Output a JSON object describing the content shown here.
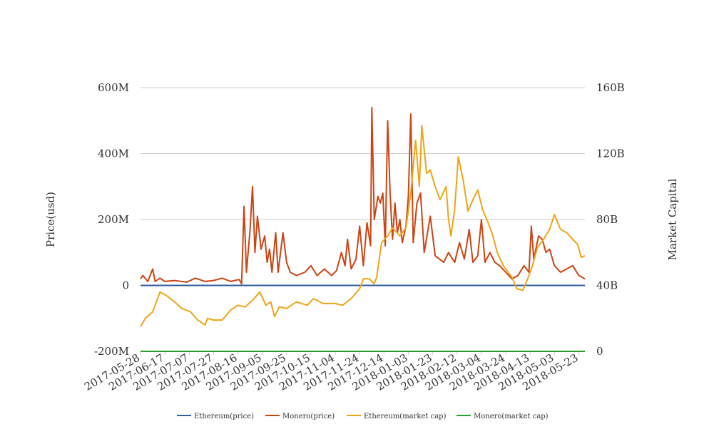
{
  "chart_data": {
    "type": "line",
    "x_range": [
      "2017-05-28",
      "2018-05-28"
    ],
    "x_tick_labels": [
      "2017-05-28",
      "2017-06-17",
      "2017-07-07",
      "2017-07-27",
      "2017-08-16",
      "2017-09-05",
      "2017-09-25",
      "2017-10-15",
      "2017-11-04",
      "2017-11-24",
      "2017-12-14",
      "2018-01-03",
      "2018-01-23",
      "2018-02-12",
      "2018-03-04",
      "2018-03-24",
      "2018-04-13",
      "2018-05-03",
      "2018-05-23"
    ],
    "y_left": {
      "label": "Price(usd)",
      "range": [
        -200000000,
        600000000
      ],
      "tick_labels": [
        "-200M",
        "0",
        "200M",
        "400M",
        "600M"
      ]
    },
    "y_right": {
      "label": "Market Capital",
      "range": [
        0,
        160000000000
      ],
      "tick_labels": [
        "0",
        "40B",
        "80B",
        "120B",
        "160B"
      ]
    },
    "grid": true,
    "legend_position": "bottom-center",
    "series": [
      {
        "name": "Ethereum(price)",
        "axis": "left",
        "color": "#2f5d9e",
        "points": [
          [
            "2017-05-28",
            0
          ],
          [
            "2018-05-28",
            0
          ]
        ]
      },
      {
        "name": "Monero(price)",
        "axis": "left",
        "color": "#cc4414",
        "points": [
          [
            "2017-05-28",
            20000000
          ],
          [
            "2017-05-30",
            30000000
          ],
          [
            "2017-06-03",
            12000000
          ],
          [
            "2017-06-07",
            50000000
          ],
          [
            "2017-06-09",
            12000000
          ],
          [
            "2017-06-13",
            22000000
          ],
          [
            "2017-06-17",
            12000000
          ],
          [
            "2017-06-25",
            15000000
          ],
          [
            "2017-07-05",
            10000000
          ],
          [
            "2017-07-12",
            22000000
          ],
          [
            "2017-07-20",
            12000000
          ],
          [
            "2017-07-27",
            15000000
          ],
          [
            "2017-08-03",
            22000000
          ],
          [
            "2017-08-10",
            12000000
          ],
          [
            "2017-08-17",
            18000000
          ],
          [
            "2017-08-19",
            5000000
          ],
          [
            "2017-08-21",
            240000000
          ],
          [
            "2017-08-23",
            40000000
          ],
          [
            "2017-08-26",
            170000000
          ],
          [
            "2017-08-28",
            300000000
          ],
          [
            "2017-08-30",
            100000000
          ],
          [
            "2017-09-01",
            210000000
          ],
          [
            "2017-09-04",
            110000000
          ],
          [
            "2017-09-07",
            150000000
          ],
          [
            "2017-09-09",
            70000000
          ],
          [
            "2017-09-11",
            110000000
          ],
          [
            "2017-09-13",
            40000000
          ],
          [
            "2017-09-16",
            160000000
          ],
          [
            "2017-09-18",
            40000000
          ],
          [
            "2017-09-22",
            160000000
          ],
          [
            "2017-09-25",
            70000000
          ],
          [
            "2017-09-28",
            40000000
          ],
          [
            "2017-10-03",
            30000000
          ],
          [
            "2017-10-10",
            40000000
          ],
          [
            "2017-10-15",
            60000000
          ],
          [
            "2017-10-20",
            30000000
          ],
          [
            "2017-10-26",
            50000000
          ],
          [
            "2017-11-01",
            30000000
          ],
          [
            "2017-11-05",
            45000000
          ],
          [
            "2017-11-09",
            100000000
          ],
          [
            "2017-11-12",
            60000000
          ],
          [
            "2017-11-14",
            140000000
          ],
          [
            "2017-11-17",
            50000000
          ],
          [
            "2017-11-21",
            80000000
          ],
          [
            "2017-11-24",
            180000000
          ],
          [
            "2017-11-27",
            60000000
          ],
          [
            "2017-11-30",
            190000000
          ],
          [
            "2017-12-03",
            120000000
          ],
          [
            "2017-12-04",
            540000000
          ],
          [
            "2017-12-06",
            200000000
          ],
          [
            "2017-12-09",
            270000000
          ],
          [
            "2017-12-11",
            250000000
          ],
          [
            "2017-12-13",
            280000000
          ],
          [
            "2017-12-15",
            120000000
          ],
          [
            "2017-12-17",
            500000000
          ],
          [
            "2017-12-19",
            280000000
          ],
          [
            "2017-12-21",
            140000000
          ],
          [
            "2017-12-23",
            250000000
          ],
          [
            "2017-12-25",
            160000000
          ],
          [
            "2017-12-27",
            200000000
          ],
          [
            "2017-12-29",
            130000000
          ],
          [
            "2018-01-01",
            180000000
          ],
          [
            "2018-01-03",
            270000000
          ],
          [
            "2018-01-05",
            520000000
          ],
          [
            "2018-01-07",
            130000000
          ],
          [
            "2018-01-10",
            250000000
          ],
          [
            "2018-01-13",
            280000000
          ],
          [
            "2018-01-16",
            100000000
          ],
          [
            "2018-01-21",
            210000000
          ],
          [
            "2018-01-25",
            90000000
          ],
          [
            "2018-02-01",
            70000000
          ],
          [
            "2018-02-05",
            100000000
          ],
          [
            "2018-02-10",
            70000000
          ],
          [
            "2018-02-14",
            130000000
          ],
          [
            "2018-02-18",
            80000000
          ],
          [
            "2018-02-22",
            170000000
          ],
          [
            "2018-02-25",
            70000000
          ],
          [
            "2018-03-01",
            90000000
          ],
          [
            "2018-03-04",
            200000000
          ],
          [
            "2018-03-07",
            70000000
          ],
          [
            "2018-03-11",
            100000000
          ],
          [
            "2018-03-15",
            70000000
          ],
          [
            "2018-03-19",
            60000000
          ],
          [
            "2018-03-24",
            40000000
          ],
          [
            "2018-03-29",
            20000000
          ],
          [
            "2018-04-03",
            30000000
          ],
          [
            "2018-04-08",
            60000000
          ],
          [
            "2018-04-12",
            40000000
          ],
          [
            "2018-04-14",
            180000000
          ],
          [
            "2018-04-16",
            80000000
          ],
          [
            "2018-04-20",
            150000000
          ],
          [
            "2018-04-23",
            140000000
          ],
          [
            "2018-04-26",
            100000000
          ],
          [
            "2018-04-29",
            110000000
          ],
          [
            "2018-05-03",
            60000000
          ],
          [
            "2018-05-08",
            40000000
          ],
          [
            "2018-05-13",
            50000000
          ],
          [
            "2018-05-18",
            60000000
          ],
          [
            "2018-05-23",
            30000000
          ],
          [
            "2018-05-28",
            20000000
          ]
        ]
      },
      {
        "name": "Ethereum(market cap)",
        "axis": "right",
        "color": "#efa417",
        "points": [
          [
            "2017-05-28",
            15000000000
          ],
          [
            "2017-06-01",
            20000000000
          ],
          [
            "2017-06-07",
            24000000000
          ],
          [
            "2017-06-13",
            36000000000
          ],
          [
            "2017-06-18",
            34000000000
          ],
          [
            "2017-06-25",
            30000000000
          ],
          [
            "2017-07-01",
            26000000000
          ],
          [
            "2017-07-08",
            24000000000
          ],
          [
            "2017-07-14",
            19000000000
          ],
          [
            "2017-07-20",
            16000000000
          ],
          [
            "2017-07-22",
            20000000000
          ],
          [
            "2017-07-27",
            19000000000
          ],
          [
            "2017-08-03",
            19000000000
          ],
          [
            "2017-08-10",
            25000000000
          ],
          [
            "2017-08-16",
            28000000000
          ],
          [
            "2017-08-22",
            27000000000
          ],
          [
            "2017-08-28",
            31000000000
          ],
          [
            "2017-09-03",
            36000000000
          ],
          [
            "2017-09-08",
            28000000000
          ],
          [
            "2017-09-12",
            30000000000
          ],
          [
            "2017-09-15",
            21000000000
          ],
          [
            "2017-09-19",
            27000000000
          ],
          [
            "2017-09-25",
            26000000000
          ],
          [
            "2017-10-03",
            30000000000
          ],
          [
            "2017-10-12",
            28000000000
          ],
          [
            "2017-10-17",
            32000000000
          ],
          [
            "2017-10-25",
            29000000000
          ],
          [
            "2017-11-04",
            29000000000
          ],
          [
            "2017-11-10",
            28000000000
          ],
          [
            "2017-11-17",
            32000000000
          ],
          [
            "2017-11-24",
            38000000000
          ],
          [
            "2017-11-27",
            44000000000
          ],
          [
            "2017-12-02",
            44000000000
          ],
          [
            "2017-12-06",
            41000000000
          ],
          [
            "2017-12-08",
            45000000000
          ],
          [
            "2017-12-12",
            66000000000
          ],
          [
            "2017-12-17",
            70000000000
          ],
          [
            "2017-12-21",
            75000000000
          ],
          [
            "2017-12-27",
            70000000000
          ],
          [
            "2018-01-01",
            75000000000
          ],
          [
            "2018-01-05",
            96000000000
          ],
          [
            "2018-01-09",
            128000000000
          ],
          [
            "2018-01-12",
            100000000000
          ],
          [
            "2018-01-14",
            137000000000
          ],
          [
            "2018-01-18",
            108000000000
          ],
          [
            "2018-01-21",
            110000000000
          ],
          [
            "2018-01-25",
            100000000000
          ],
          [
            "2018-01-29",
            92000000000
          ],
          [
            "2018-02-03",
            100000000000
          ],
          [
            "2018-02-05",
            80000000000
          ],
          [
            "2018-02-07",
            70000000000
          ],
          [
            "2018-02-10",
            86000000000
          ],
          [
            "2018-02-13",
            118000000000
          ],
          [
            "2018-02-17",
            104000000000
          ],
          [
            "2018-02-21",
            85000000000
          ],
          [
            "2018-02-25",
            92000000000
          ],
          [
            "2018-03-01",
            98000000000
          ],
          [
            "2018-03-05",
            86000000000
          ],
          [
            "2018-03-09",
            79000000000
          ],
          [
            "2018-03-13",
            71000000000
          ],
          [
            "2018-03-17",
            60000000000
          ],
          [
            "2018-03-22",
            52000000000
          ],
          [
            "2018-03-29",
            45000000000
          ],
          [
            "2018-04-02",
            38000000000
          ],
          [
            "2018-04-07",
            37000000000
          ],
          [
            "2018-04-11",
            44000000000
          ],
          [
            "2018-04-15",
            52000000000
          ],
          [
            "2018-04-19",
            63000000000
          ],
          [
            "2018-04-24",
            68000000000
          ],
          [
            "2018-04-29",
            74000000000
          ],
          [
            "2018-05-03",
            83000000000
          ],
          [
            "2018-05-08",
            74000000000
          ],
          [
            "2018-05-13",
            72000000000
          ],
          [
            "2018-05-18",
            68000000000
          ],
          [
            "2018-05-22",
            65000000000
          ],
          [
            "2018-05-25",
            57000000000
          ],
          [
            "2018-05-28",
            58000000000
          ]
        ]
      },
      {
        "name": "Monero(market cap)",
        "axis": "right",
        "color": "#2c9e2c",
        "points": [
          [
            "2017-05-28",
            0
          ],
          [
            "2018-05-28",
            0
          ]
        ]
      }
    ]
  }
}
